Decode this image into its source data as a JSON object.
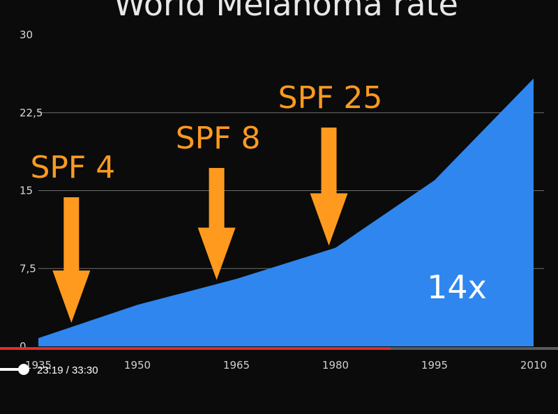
{
  "chart_data": {
    "type": "area",
    "title": "World Melanoma rate",
    "x": [
      1935,
      1950,
      1965,
      1980,
      1995,
      2010
    ],
    "xticks": [
      "1935",
      "1950",
      "1965",
      "1980",
      "1995",
      "2010"
    ],
    "series": [
      {
        "values": [
          0.8,
          4.0,
          6.5,
          9.5,
          16.0,
          25.8
        ]
      }
    ],
    "y_range": [
      0,
      30
    ],
    "y_ticks": [
      "0",
      "7,5",
      "15",
      "22,5",
      "30"
    ],
    "grid": true,
    "annotations": [
      {
        "label": "SPF 4",
        "x": 1940
      },
      {
        "label": "SPF 8",
        "x": 1962
      },
      {
        "label": "SPF 25",
        "x": 1979
      }
    ],
    "callout": "14x",
    "colors": {
      "area": "#2f86ee",
      "arrow": "#ff9a1f",
      "background": "#0b0b0b"
    }
  },
  "player": {
    "time": "23:19 / 33:30",
    "progress": 0.7
  }
}
